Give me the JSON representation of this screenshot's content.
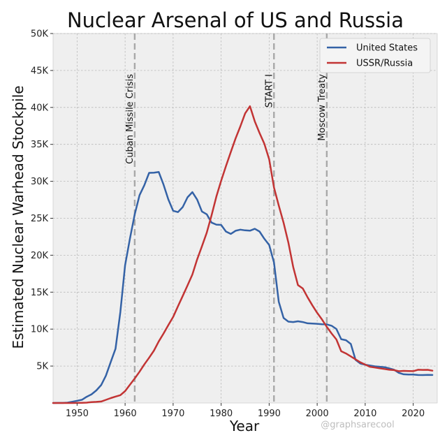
{
  "chart_data": {
    "type": "line",
    "title": "Nuclear Arsenal of US and Russia",
    "xlabel": "Year",
    "ylabel": "Estimated Nuclear Warhead Stockpile",
    "xlim": [
      1945,
      2025
    ],
    "ylim": [
      0,
      50000
    ],
    "x_ticks": [
      1950,
      1960,
      1970,
      1980,
      1990,
      2000,
      2010,
      2020
    ],
    "x_tick_labels": [
      "1950",
      "1960",
      "1970",
      "1980",
      "1990",
      "2000",
      "2010",
      "2020"
    ],
    "y_ticks": [
      5000,
      10000,
      15000,
      20000,
      25000,
      30000,
      35000,
      40000,
      45000,
      50000
    ],
    "y_tick_labels": [
      "5K",
      "10K",
      "15K",
      "20K",
      "25K",
      "30K",
      "35K",
      "40K",
      "45K",
      "50K"
    ],
    "grid": true,
    "legend_position": "top-right",
    "series": [
      {
        "name": "United States",
        "color": "#3462a6",
        "x": [
          1945,
          1946,
          1947,
          1948,
          1949,
          1950,
          1951,
          1952,
          1953,
          1954,
          1955,
          1956,
          1957,
          1958,
          1959,
          1960,
          1961,
          1962,
          1963,
          1964,
          1965,
          1966,
          1967,
          1968,
          1969,
          1970,
          1971,
          1972,
          1973,
          1974,
          1975,
          1976,
          1977,
          1978,
          1979,
          1980,
          1981,
          1982,
          1983,
          1984,
          1985,
          1986,
          1987,
          1988,
          1989,
          1990,
          1991,
          1992,
          1993,
          1994,
          1995,
          1996,
          1997,
          1998,
          1999,
          2000,
          2001,
          2002,
          2003,
          2004,
          2005,
          2006,
          2007,
          2008,
          2009,
          2010,
          2011,
          2012,
          2013,
          2014,
          2015,
          2016,
          2017,
          2018,
          2019,
          2020,
          2021,
          2022,
          2023,
          2024
        ],
        "values": [
          2,
          9,
          13,
          50,
          170,
          299,
          438,
          841,
          1169,
          1703,
          2422,
          3692,
          5543,
          7345,
          12298,
          18638,
          22229,
          25540,
          28133,
          29463,
          31139,
          31175,
          31255,
          29561,
          27552,
          26008,
          25830,
          26516,
          27835,
          28537,
          27519,
          25914,
          25542,
          24418,
          24138,
          24104,
          23208,
          22886,
          23305,
          23459,
          23368,
          23317,
          23575,
          23205,
          22217,
          21392,
          19008,
          13708,
          11511,
          11011,
          10953,
          11058,
          10950,
          10786,
          10760,
          10714,
          10655,
          10640,
          10458,
          10015,
          8641,
          8500,
          7987,
          5831,
          5343,
          5180,
          5070,
          4963,
          4904,
          4845,
          4690,
          4507,
          4085,
          3880,
          3850,
          3860,
          3790,
          3780,
          3800,
          3790
        ]
      },
      {
        "name": "USSR/Russia",
        "color": "#c23434",
        "x": [
          1945,
          1949,
          1950,
          1951,
          1952,
          1953,
          1954,
          1955,
          1956,
          1957,
          1958,
          1959,
          1960,
          1961,
          1962,
          1963,
          1964,
          1965,
          1966,
          1967,
          1968,
          1969,
          1970,
          1971,
          1972,
          1973,
          1974,
          1975,
          1976,
          1977,
          1978,
          1979,
          1980,
          1981,
          1982,
          1983,
          1984,
          1985,
          1986,
          1987,
          1988,
          1989,
          1990,
          1991,
          1992,
          1993,
          1994,
          1995,
          1996,
          1997,
          1998,
          1999,
          2000,
          2001,
          2002,
          2003,
          2004,
          2005,
          2006,
          2007,
          2008,
          2009,
          2010,
          2011,
          2012,
          2013,
          2014,
          2015,
          2016,
          2017,
          2018,
          2019,
          2020,
          2021,
          2022,
          2023,
          2024
        ],
        "values": [
          0,
          1,
          5,
          25,
          50,
          120,
          150,
          200,
          426,
          660,
          869,
          1060,
          1605,
          2471,
          3322,
          4238,
          5221,
          6129,
          7089,
          8339,
          9399,
          10538,
          11643,
          13092,
          14478,
          15915,
          17385,
          19443,
          21205,
          23044,
          25393,
          27935,
          30062,
          32049,
          33952,
          35804,
          37431,
          39197,
          40159,
          38107,
          36538,
          35078,
          32980,
          29154,
          26734,
          24400,
          21700,
          18400,
          15950,
          15500,
          14300,
          13200,
          12200,
          11300,
          10300,
          9400,
          8600,
          7000,
          6700,
          6300,
          5900,
          5500,
          5200,
          4900,
          4800,
          4700,
          4600,
          4500,
          4450,
          4300,
          4350,
          4330,
          4310,
          4495,
          4477,
          4489,
          4380
        ]
      }
    ],
    "annotations": [
      {
        "x": 1962,
        "label": "Cuban Missile Crisis"
      },
      {
        "x": 1991,
        "label": "START I"
      },
      {
        "x": 2002,
        "label": "Moscow Treaty"
      }
    ],
    "watermark": "@graphsarecool"
  }
}
